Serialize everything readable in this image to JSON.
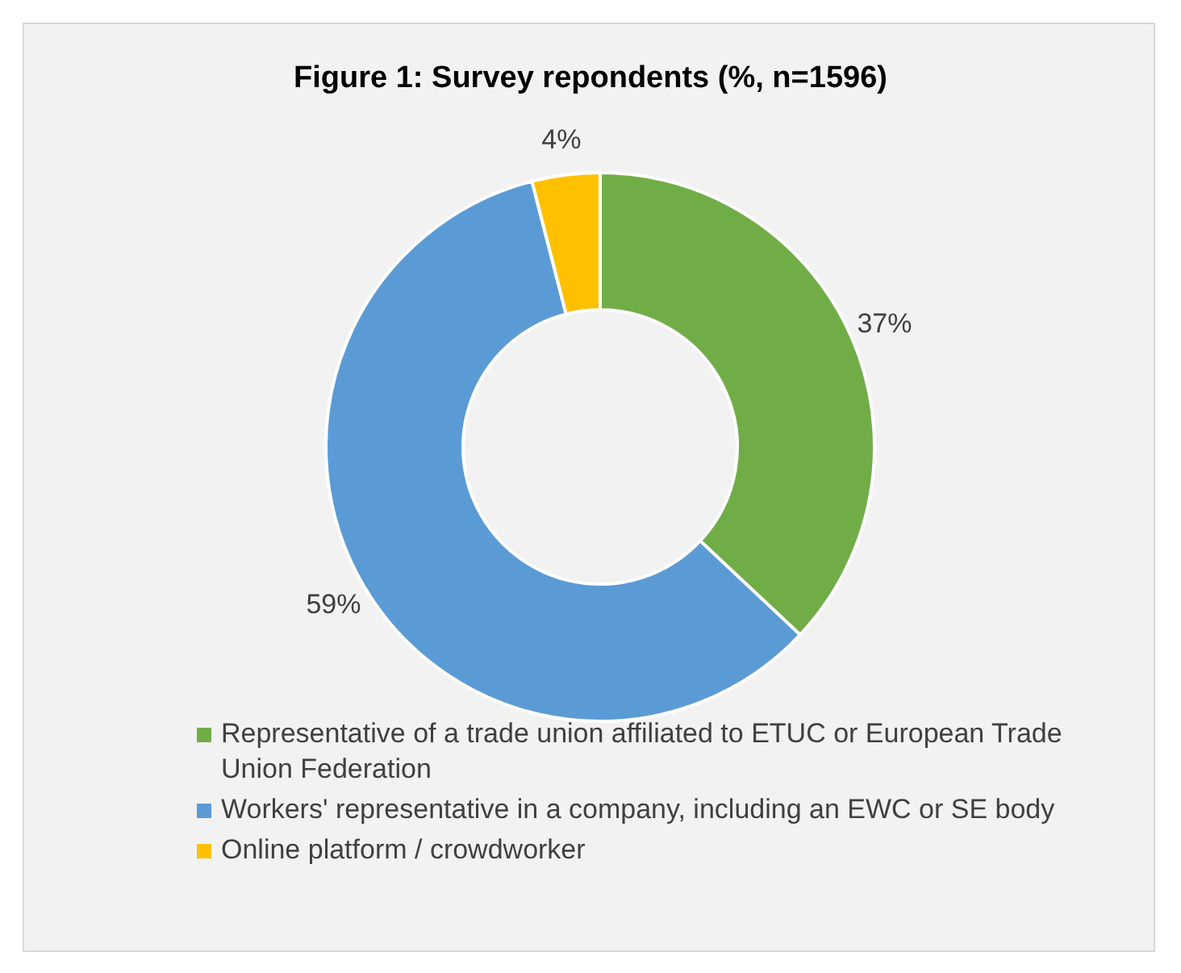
{
  "chart_data": {
    "type": "donut",
    "title": "Figure 1: Survey repondents (%, n=1596)",
    "categories": [
      "Representative of a trade union affiliated to ETUC or European Trade Union Federation",
      "Workers' representative in a company, including an EWC or SE body",
      "Online platform / crowdworker"
    ],
    "values": [
      37,
      59,
      4
    ],
    "colors": [
      "#70ad47",
      "#5b9bd5",
      "#ffc000"
    ],
    "value_labels": [
      "37%",
      "59%",
      "4%"
    ],
    "legend": "bottom"
  }
}
